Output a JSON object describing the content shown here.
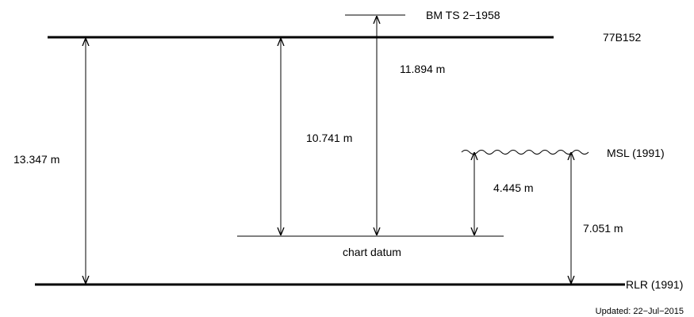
{
  "levels": {
    "bm": "BM TS 2−1958",
    "b77": "77B152",
    "msl": "MSL (1991)",
    "chart_datum": "chart datum",
    "rlr": "RLR (1991)"
  },
  "distances": {
    "rlr_to_77b152": "13.347 m",
    "chart_datum_to_77b152": "10.741 m",
    "chart_datum_to_bm": "11.894 m",
    "chart_datum_to_msl": "4.445 m",
    "rlr_to_msl": "7.051 m"
  },
  "footer": {
    "updated": "Updated: 22−Jul−2015"
  }
}
